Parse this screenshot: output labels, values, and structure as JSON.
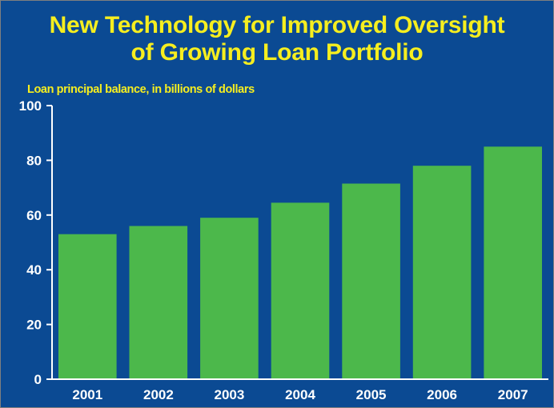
{
  "chart_data": {
    "type": "bar",
    "title_line1": "New Technology for Improved Oversight",
    "title_line2": "of Growing Loan Portfolio",
    "ylabel": "Loan principal balance, in billions of dollars",
    "xlabel": "",
    "categories": [
      "2001",
      "2002",
      "2003",
      "2004",
      "2005",
      "2006",
      "2007"
    ],
    "values": [
      53,
      56,
      59,
      64.5,
      71.5,
      78,
      85
    ],
    "ylim": [
      0,
      100
    ],
    "yticks": [
      0,
      20,
      40,
      60,
      80,
      100
    ],
    "grid": false,
    "legend": "none"
  },
  "colors": {
    "background": "#0b4a93",
    "bar": "#4cb84b",
    "title": "#f6ee1f",
    "axis": "#ffffff"
  }
}
